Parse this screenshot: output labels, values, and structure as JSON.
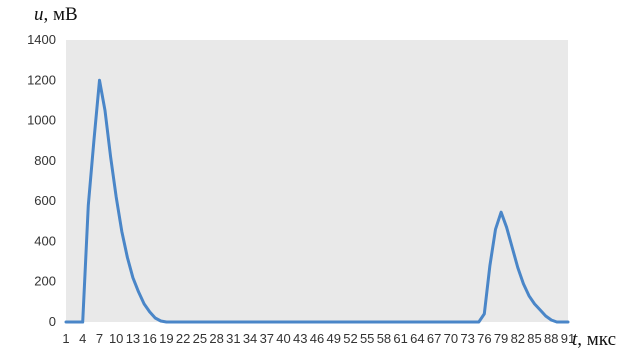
{
  "chart_data": {
    "type": "line",
    "ylabel_var": "u",
    "ylabel_unit": ", мВ",
    "xlabel_var": "t",
    "xlabel_unit": ", мкс",
    "ylim": [
      0,
      1400
    ],
    "y_ticks": [
      "0",
      "200",
      "400",
      "600",
      "800",
      "1000",
      "1200",
      "1400"
    ],
    "x_tick_labels": [
      "1",
      "4",
      "7",
      "10",
      "13",
      "16",
      "19",
      "22",
      "25",
      "28",
      "31",
      "34",
      "37",
      "40",
      "43",
      "46",
      "49",
      "52",
      "55",
      "58",
      "61",
      "64",
      "67",
      "70",
      "73",
      "76",
      "79",
      "82",
      "85",
      "88",
      "91"
    ],
    "grid": false,
    "plot_background": "#e9e9e9",
    "line_color": "#4a86c8",
    "series": [
      {
        "x": [
          1,
          2,
          3,
          4,
          5,
          6,
          7,
          8,
          9,
          10,
          11,
          12,
          13,
          14,
          15,
          16,
          17,
          18,
          19,
          20,
          25,
          30,
          35,
          40,
          45,
          50,
          55,
          60,
          65,
          70,
          75,
          76,
          77,
          78,
          79,
          80,
          81,
          82,
          83,
          84,
          85,
          86,
          87,
          88,
          89,
          90,
          91
        ],
        "y": [
          0,
          0,
          0,
          0,
          580,
          900,
          1200,
          1050,
          820,
          620,
          450,
          320,
          220,
          150,
          90,
          50,
          20,
          5,
          0,
          0,
          0,
          0,
          0,
          0,
          0,
          0,
          0,
          0,
          0,
          0,
          0,
          40,
          280,
          460,
          545,
          470,
          370,
          270,
          190,
          130,
          90,
          60,
          30,
          10,
          0,
          0,
          0
        ]
      }
    ]
  }
}
